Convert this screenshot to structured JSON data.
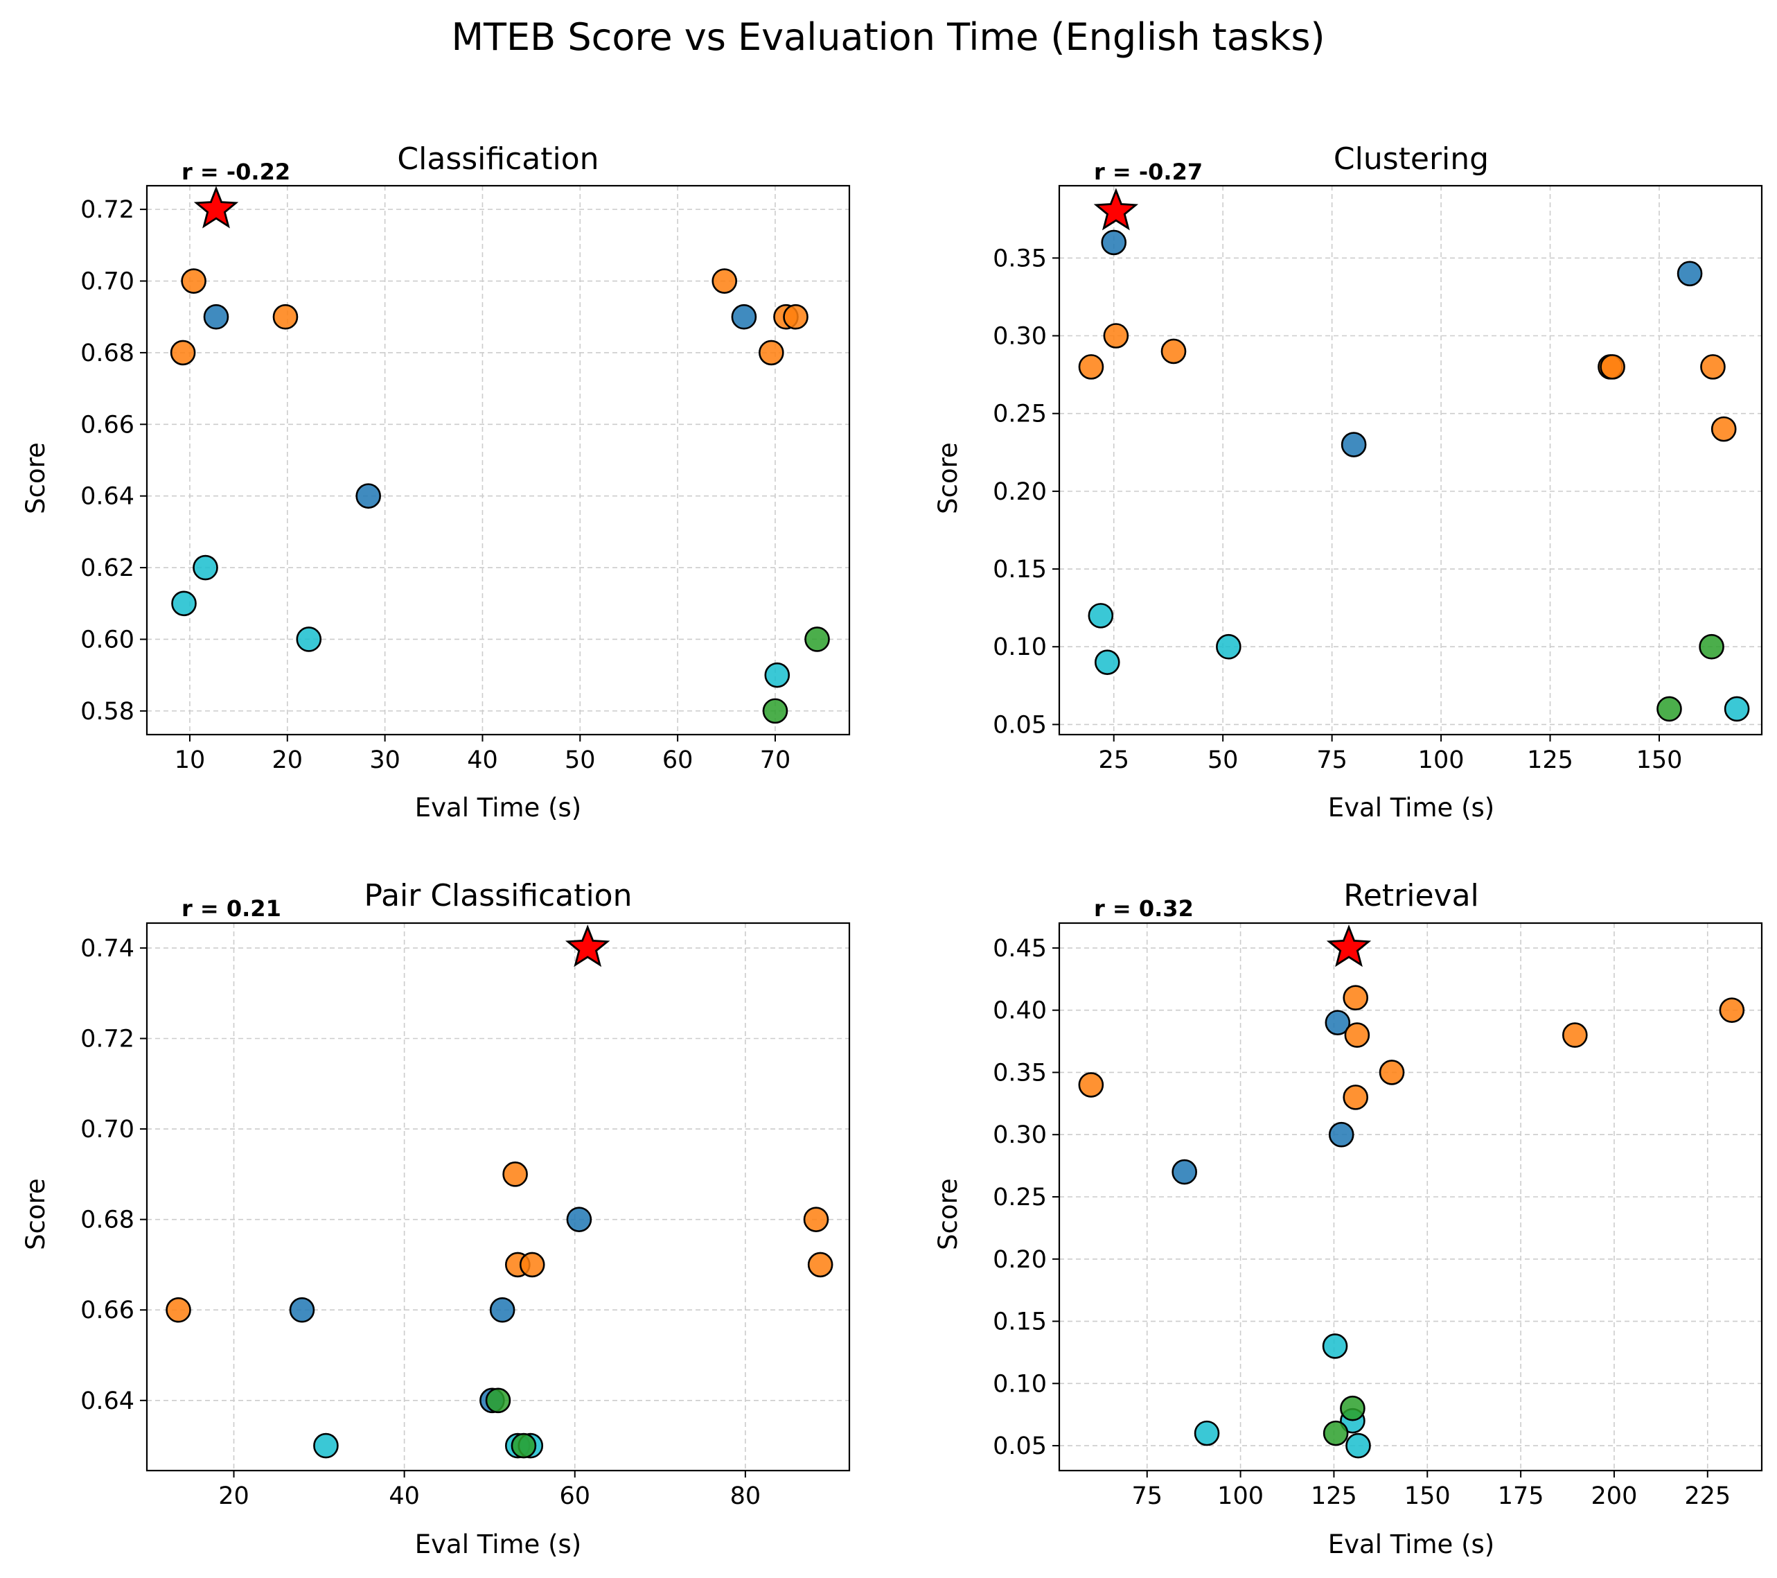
{
  "title": "MTEB Score vs Evaluation Time (English tasks)",
  "colors": {
    "blue": "#1f77b4",
    "orange": "#ff7f0e",
    "green": "#2ca02c",
    "cyan": "#17becf",
    "star": "#ff0000"
  },
  "chart_data": [
    {
      "type": "scatter",
      "title": "Classification",
      "xlabel": "Eval Time (s)",
      "ylabel": "Score",
      "annotation": "r = -0.22",
      "xlim": [
        5.6,
        77.6
      ],
      "ylim": [
        0.5734,
        0.7266
      ],
      "xticks": [
        10,
        20,
        30,
        40,
        50,
        60,
        70
      ],
      "yticks": [
        0.58,
        0.6,
        0.62,
        0.64,
        0.66,
        0.68,
        0.7,
        0.72
      ],
      "ytick_decimals": 2,
      "grid": true,
      "points": [
        {
          "x": 12.7,
          "y": 0.69,
          "color": "blue"
        },
        {
          "x": 28.3,
          "y": 0.64,
          "color": "blue"
        },
        {
          "x": 66.8,
          "y": 0.69,
          "color": "blue"
        },
        {
          "x": 10.4,
          "y": 0.7,
          "color": "orange"
        },
        {
          "x": 9.3,
          "y": 0.68,
          "color": "orange"
        },
        {
          "x": 19.8,
          "y": 0.69,
          "color": "orange"
        },
        {
          "x": 64.8,
          "y": 0.7,
          "color": "orange"
        },
        {
          "x": 69.6,
          "y": 0.68,
          "color": "orange"
        },
        {
          "x": 71.1,
          "y": 0.69,
          "color": "orange"
        },
        {
          "x": 72.1,
          "y": 0.69,
          "color": "orange"
        },
        {
          "x": 11.6,
          "y": 0.62,
          "color": "cyan"
        },
        {
          "x": 9.4,
          "y": 0.61,
          "color": "cyan"
        },
        {
          "x": 22.2,
          "y": 0.6,
          "color": "cyan"
        },
        {
          "x": 70.2,
          "y": 0.59,
          "color": "cyan"
        },
        {
          "x": 74.3,
          "y": 0.6,
          "color": "green"
        },
        {
          "x": 70.0,
          "y": 0.58,
          "color": "green"
        }
      ],
      "highlight": {
        "x": 12.7,
        "y": 0.72,
        "marker": "star",
        "color": "star"
      }
    },
    {
      "type": "scatter",
      "title": "Clustering",
      "xlabel": "Eval Time (s)",
      "ylabel": "Score",
      "annotation": "r = -0.27",
      "xlim": [
        12.5,
        173.5
      ],
      "ylim": [
        0.0435,
        0.3965
      ],
      "xticks": [
        25,
        50,
        75,
        100,
        125,
        150
      ],
      "yticks": [
        0.05,
        0.1,
        0.15,
        0.2,
        0.25,
        0.3,
        0.35
      ],
      "ytick_decimals": 2,
      "grid": true,
      "points": [
        {
          "x": 25.0,
          "y": 0.36,
          "color": "blue"
        },
        {
          "x": 80.0,
          "y": 0.23,
          "color": "blue"
        },
        {
          "x": 157.0,
          "y": 0.34,
          "color": "blue"
        },
        {
          "x": 19.8,
          "y": 0.28,
          "color": "orange"
        },
        {
          "x": 25.5,
          "y": 0.3,
          "color": "orange"
        },
        {
          "x": 38.7,
          "y": 0.29,
          "color": "orange"
        },
        {
          "x": 138.8,
          "y": 0.28,
          "color": "orange"
        },
        {
          "x": 139.3,
          "y": 0.28,
          "color": "orange"
        },
        {
          "x": 162.3,
          "y": 0.28,
          "color": "orange"
        },
        {
          "x": 164.8,
          "y": 0.24,
          "color": "orange"
        },
        {
          "x": 22.0,
          "y": 0.12,
          "color": "cyan"
        },
        {
          "x": 23.5,
          "y": 0.09,
          "color": "cyan"
        },
        {
          "x": 51.3,
          "y": 0.1,
          "color": "cyan"
        },
        {
          "x": 167.8,
          "y": 0.06,
          "color": "cyan"
        },
        {
          "x": 162.0,
          "y": 0.1,
          "color": "green"
        },
        {
          "x": 152.3,
          "y": 0.06,
          "color": "green"
        }
      ],
      "highlight": {
        "x": 25.5,
        "y": 0.38,
        "marker": "star",
        "color": "star"
      }
    },
    {
      "type": "scatter",
      "title": "Pair Classification",
      "xlabel": "Eval Time (s)",
      "ylabel": "Score",
      "annotation": "r = 0.21",
      "xlim": [
        9.8,
        92.2
      ],
      "ylim": [
        0.6245,
        0.7455
      ],
      "xticks": [
        20,
        40,
        60,
        80
      ],
      "yticks": [
        0.64,
        0.66,
        0.68,
        0.7,
        0.72,
        0.74
      ],
      "ytick_decimals": 2,
      "grid": true,
      "points": [
        {
          "x": 28.0,
          "y": 0.66,
          "color": "blue"
        },
        {
          "x": 51.5,
          "y": 0.66,
          "color": "blue"
        },
        {
          "x": 60.5,
          "y": 0.68,
          "color": "blue"
        },
        {
          "x": 50.3,
          "y": 0.64,
          "color": "blue"
        },
        {
          "x": 13.5,
          "y": 0.66,
          "color": "orange"
        },
        {
          "x": 53.0,
          "y": 0.69,
          "color": "orange"
        },
        {
          "x": 53.3,
          "y": 0.67,
          "color": "orange"
        },
        {
          "x": 55.0,
          "y": 0.67,
          "color": "orange"
        },
        {
          "x": 88.3,
          "y": 0.68,
          "color": "orange"
        },
        {
          "x": 88.8,
          "y": 0.67,
          "color": "orange"
        },
        {
          "x": 30.8,
          "y": 0.63,
          "color": "cyan"
        },
        {
          "x": 53.3,
          "y": 0.63,
          "color": "cyan"
        },
        {
          "x": 54.8,
          "y": 0.63,
          "color": "cyan"
        },
        {
          "x": 51.0,
          "y": 0.64,
          "color": "green"
        },
        {
          "x": 54.0,
          "y": 0.63,
          "color": "green"
        }
      ],
      "highlight": {
        "x": 61.5,
        "y": 0.74,
        "marker": "star",
        "color": "star"
      }
    },
    {
      "type": "scatter",
      "title": "Retrieval",
      "xlabel": "Eval Time (s)",
      "ylabel": "Score",
      "annotation": "r = 0.32",
      "xlim": [
        51.5,
        239.5
      ],
      "ylim": [
        0.03,
        0.47
      ],
      "xticks": [
        75,
        100,
        125,
        150,
        175,
        200,
        225
      ],
      "yticks": [
        0.05,
        0.1,
        0.15,
        0.2,
        0.25,
        0.3,
        0.35,
        0.4,
        0.45
      ],
      "ytick_decimals": 2,
      "grid": true,
      "points": [
        {
          "x": 126.0,
          "y": 0.39,
          "color": "blue"
        },
        {
          "x": 127.0,
          "y": 0.3,
          "color": "blue"
        },
        {
          "x": 85.0,
          "y": 0.27,
          "color": "blue"
        },
        {
          "x": 60.0,
          "y": 0.34,
          "color": "orange"
        },
        {
          "x": 130.8,
          "y": 0.41,
          "color": "orange"
        },
        {
          "x": 131.2,
          "y": 0.38,
          "color": "orange"
        },
        {
          "x": 130.8,
          "y": 0.33,
          "color": "orange"
        },
        {
          "x": 140.5,
          "y": 0.35,
          "color": "orange"
        },
        {
          "x": 189.5,
          "y": 0.38,
          "color": "orange"
        },
        {
          "x": 231.5,
          "y": 0.4,
          "color": "orange"
        },
        {
          "x": 125.3,
          "y": 0.13,
          "color": "cyan"
        },
        {
          "x": 91.0,
          "y": 0.06,
          "color": "cyan"
        },
        {
          "x": 130.0,
          "y": 0.07,
          "color": "cyan"
        },
        {
          "x": 131.5,
          "y": 0.05,
          "color": "cyan"
        },
        {
          "x": 125.5,
          "y": 0.06,
          "color": "green"
        },
        {
          "x": 130.0,
          "y": 0.08,
          "color": "green"
        }
      ],
      "highlight": {
        "x": 129.0,
        "y": 0.45,
        "marker": "star",
        "color": "star"
      }
    }
  ]
}
